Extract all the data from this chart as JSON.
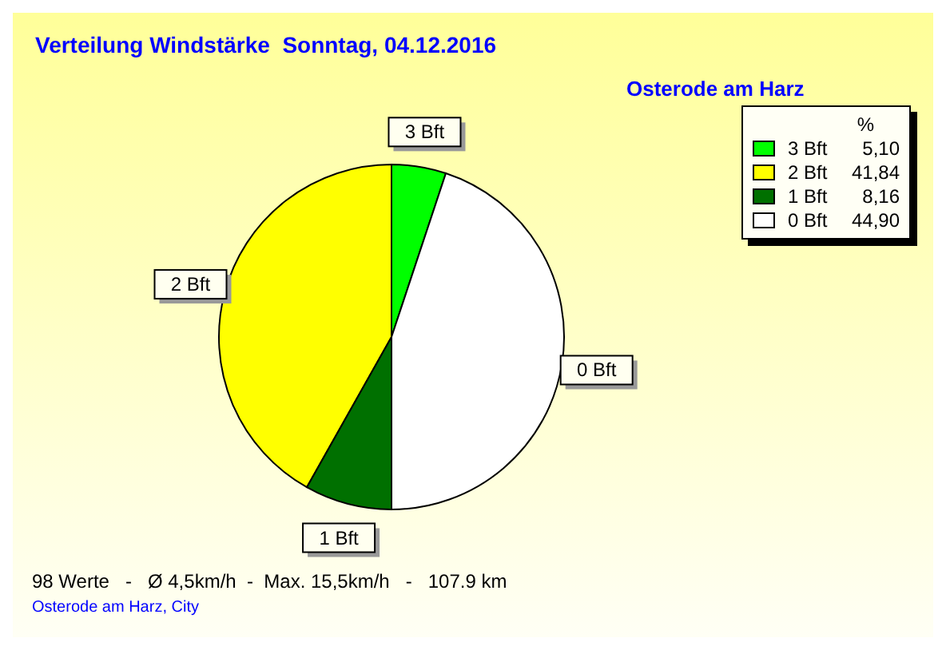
{
  "chart_data": {
    "type": "pie",
    "title": "Verteilung Windstärke  Sonntag, 04.12.2016",
    "subtitle": "Osterode am Harz",
    "categories": [
      "3 Bft",
      "2 Bft",
      "1 Bft",
      "0 Bft"
    ],
    "values": [
      5.1,
      41.84,
      8.16,
      44.9
    ],
    "value_labels": [
      "5,10",
      "41,84",
      "8,16",
      "44,90"
    ],
    "colors": [
      "#00ff00",
      "#ffff00",
      "#007000",
      "#ffffff"
    ],
    "legend": "top right",
    "legend_title": "%",
    "annotations": [
      "98 Werte   -   Ø 4,5km/h  -  Max. 15,5km/h   -   107.9 km",
      "Osterode am Harz, City"
    ]
  }
}
